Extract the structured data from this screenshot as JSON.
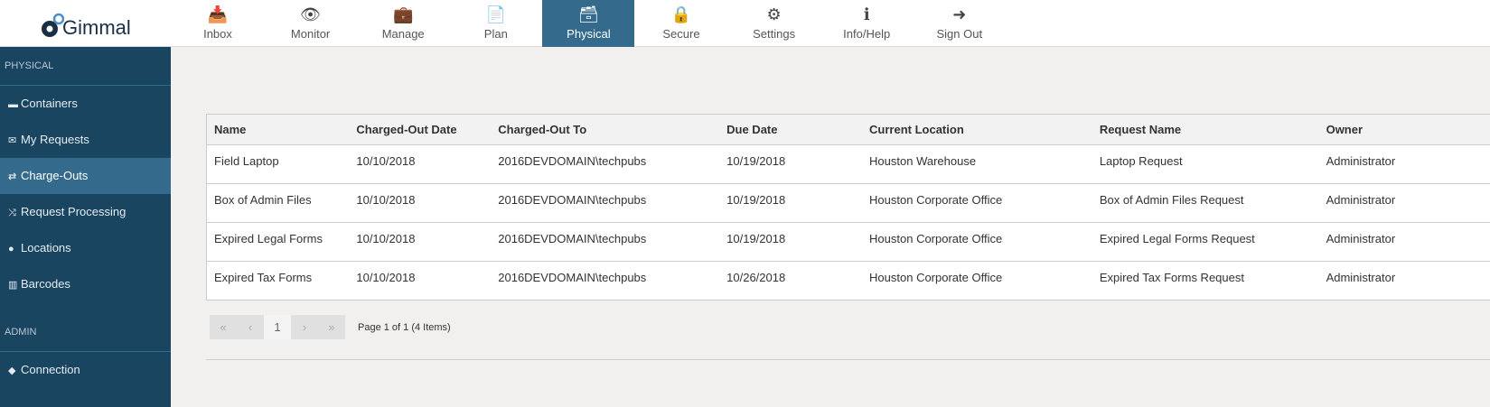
{
  "app": {
    "logo_text": "Gimmal"
  },
  "nav": [
    {
      "label": "Inbox",
      "icon": "inbox-icon",
      "glyph": "📥"
    },
    {
      "label": "Monitor",
      "icon": "eye-icon",
      "glyph": "👁"
    },
    {
      "label": "Manage",
      "icon": "briefcase-icon",
      "glyph": "💼"
    },
    {
      "label": "Plan",
      "icon": "document-icon",
      "glyph": "📄"
    },
    {
      "label": "Physical",
      "icon": "archive-box-icon",
      "glyph": "🗃",
      "active": true
    },
    {
      "label": "Secure",
      "icon": "lock-icon",
      "glyph": "🔒"
    },
    {
      "label": "Settings",
      "icon": "gears-icon",
      "glyph": "⚙"
    },
    {
      "label": "Info/Help",
      "icon": "info-icon",
      "glyph": "ℹ"
    },
    {
      "label": "Sign Out",
      "icon": "sign-out-icon",
      "glyph": "➜"
    }
  ],
  "sidebar": {
    "section1": "PHYSICAL",
    "items": [
      {
        "label": "Containers",
        "icon": "archive-icon",
        "glyph": "▬"
      },
      {
        "label": "My Requests",
        "icon": "envelope-icon",
        "glyph": "✉"
      },
      {
        "label": "Charge-Outs",
        "icon": "exchange-icon",
        "glyph": "⇄",
        "active": true
      },
      {
        "label": "Request Processing",
        "icon": "random-icon",
        "glyph": "⤨"
      },
      {
        "label": "Locations",
        "icon": "map-marker-icon",
        "glyph": "●"
      },
      {
        "label": "Barcodes",
        "icon": "barcode-icon",
        "glyph": "▥"
      }
    ],
    "section2": "ADMIN",
    "admin_items": [
      {
        "label": "Connection",
        "icon": "tag-icon",
        "glyph": "◆"
      }
    ]
  },
  "table": {
    "columns": [
      "Name",
      "Charged-Out Date",
      "Charged-Out To",
      "Due Date",
      "Current Location",
      "Request Name",
      "Owner"
    ],
    "rows": [
      [
        "Field Laptop",
        "10/10/2018",
        "2016DEVDOMAIN\\techpubs",
        "10/19/2018",
        "Houston Warehouse",
        "Laptop Request",
        "Administrator"
      ],
      [
        "Box of Admin Files",
        "10/10/2018",
        "2016DEVDOMAIN\\techpubs",
        "10/19/2018",
        "Houston Corporate Office",
        "Box of Admin Files Request",
        "Administrator"
      ],
      [
        "Expired Legal Forms",
        "10/10/2018",
        "2016DEVDOMAIN\\techpubs",
        "10/19/2018",
        "Houston Corporate Office",
        "Expired Legal Forms Request",
        "Administrator"
      ],
      [
        "Expired Tax Forms",
        "10/10/2018",
        "2016DEVDOMAIN\\techpubs",
        "10/26/2018",
        "Houston Corporate Office",
        "Expired Tax Forms Request",
        "Administrator"
      ]
    ]
  },
  "pager": {
    "first": "«",
    "prev": "‹",
    "page": "1",
    "next": "›",
    "last": "»",
    "info": "Page 1 of 1 (4 Items)"
  },
  "colors": {
    "sidebar": "#1a4560",
    "accent": "#346b8c"
  }
}
